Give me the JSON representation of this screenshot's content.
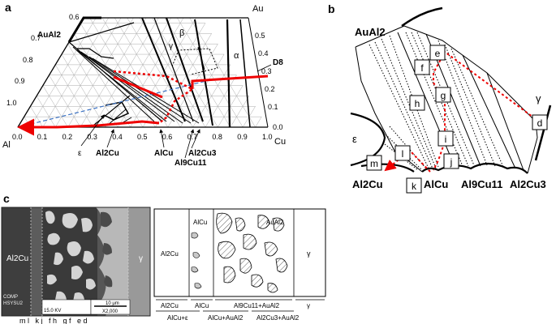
{
  "panels": {
    "a": {
      "letter": "a",
      "corners": {
        "top": "Au",
        "left": "Al",
        "right": "Cu"
      },
      "au_ticks": [
        "0.6",
        "0.5",
        "0.4",
        "0.3",
        "0.2",
        "0.1",
        "0.0"
      ],
      "left_ticks": [
        "0.7",
        "0.8",
        "0.9",
        "1.0"
      ],
      "bottom_ticks": [
        "0.0",
        "0.1",
        "0.2",
        "0.3",
        "0.4",
        "0.5",
        "0.6",
        "0.7",
        "0.8",
        "0.9",
        "1.0"
      ],
      "phases": {
        "auAl2": "AuAl2",
        "beta": "β",
        "gamma": "γ",
        "alpha": "α",
        "d8": "D8",
        "epsilon": "ε",
        "al2cu": "Al2Cu",
        "alcu": "AlCu",
        "al2cu3": "Al2Cu3",
        "al9cu11": "Al9Cu11"
      }
    },
    "b": {
      "letter": "b",
      "phases": {
        "auAl2": "AuAl2",
        "gamma": "γ",
        "epsilon": "ε",
        "al2cu": "Al2Cu",
        "alcu": "AlCu",
        "al9cu11": "Al9Cu11",
        "al2cu3": "Al2Cu3"
      },
      "points": [
        "e",
        "f",
        "g",
        "h",
        "i",
        "j",
        "k",
        "l",
        "m",
        "d"
      ]
    },
    "c": {
      "letter": "c",
      "micrograph": {
        "al2cu": "Al2Cu",
        "gamma": "γ",
        "info_comp": "COMP",
        "info_inst": "HSYSU2",
        "kv": "15.0 KV",
        "scale": "10 μm",
        "mag": "X2,000",
        "markers": "m l   k j   f h   g f   e d"
      },
      "schematic": {
        "al2cu": "Al2Cu",
        "alcu": "AlCu",
        "auAl2": "AuAl2",
        "gamma": "γ",
        "below_top": [
          "Al2Cu",
          "AlCu",
          "Al9Cu11+AuAl2",
          "γ"
        ],
        "below_bottom": [
          "AlCu+ε",
          "AlCu+AuAl2",
          "Al2Cu3+AuAl2"
        ]
      }
    }
  }
}
